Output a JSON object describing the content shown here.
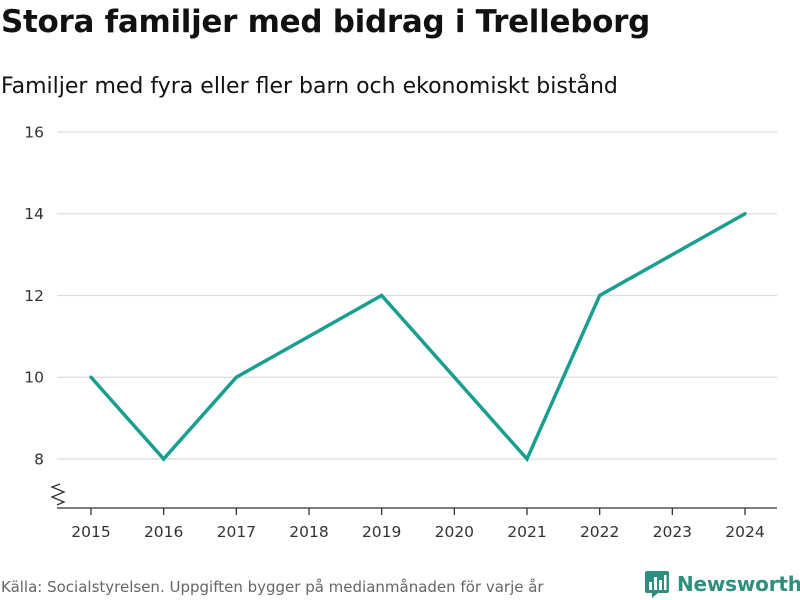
{
  "chart_data": {
    "type": "line",
    "title": "Stora familjer med bidrag i Trelleborg",
    "subtitle": "Familjer med fyra eller fler barn och ekonomiskt bistånd",
    "x": [
      2015,
      2016,
      2017,
      2018,
      2019,
      2020,
      2021,
      2022,
      2023,
      2024
    ],
    "x_tick_labels": [
      "2015",
      "2016",
      "2017",
      "2018",
      "2019",
      "2020",
      "2021",
      "2022",
      "2023",
      "2024"
    ],
    "series": [
      {
        "name": "Familjer",
        "values": [
          10,
          8,
          10,
          11,
          12,
          10,
          8,
          12,
          13,
          14
        ],
        "color": "#1a9e8f"
      }
    ],
    "y_ticks": [
      8,
      10,
      12,
      14,
      16
    ],
    "y_tick_labels": [
      "8",
      "10",
      "12",
      "14",
      "16"
    ],
    "ylim": [
      6.8,
      16
    ],
    "xlim": [
      2015,
      2024
    ],
    "grid": true,
    "axis_break": true,
    "xlabel": "",
    "ylabel": ""
  },
  "footer": {
    "source": "Källa: Socialstyrelsen. Uppgiften bygger på medianmånaden för varje år",
    "brand": "Newsworthy",
    "brand_color": "#2e8f7f"
  }
}
